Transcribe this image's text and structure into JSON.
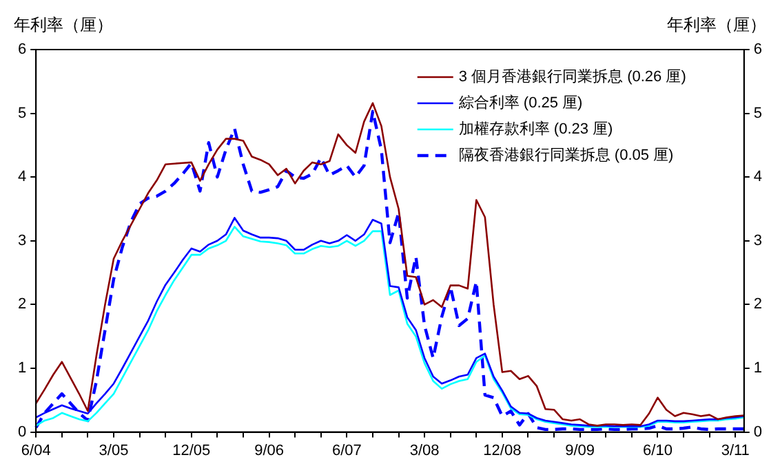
{
  "chart_data": {
    "type": "line",
    "ylabel": "年利率（厘）",
    "y2label": "年利率（厘）",
    "categories": [
      "6/04",
      null,
      null,
      null,
      null,
      null,
      null,
      null,
      null,
      "3/05",
      null,
      null,
      null,
      null,
      null,
      null,
      null,
      null,
      "12/05",
      null,
      null,
      null,
      null,
      null,
      null,
      null,
      null,
      "9/06",
      null,
      null,
      null,
      null,
      null,
      null,
      null,
      null,
      "6/07",
      null,
      null,
      null,
      null,
      null,
      null,
      null,
      null,
      "3/08",
      null,
      null,
      null,
      null,
      null,
      null,
      null,
      null,
      "12/08",
      null,
      null,
      null,
      null,
      null,
      null,
      null,
      null,
      "9/09",
      null,
      null,
      null,
      null,
      null,
      null,
      null,
      null,
      "6/10",
      null,
      null,
      null,
      null,
      null,
      null,
      null,
      null,
      "3/11",
      null
    ],
    "series": [
      {
        "name": "3 個月香港銀行同業拆息 (0.26 厘)",
        "color": "#8b0000",
        "line_style": "solid",
        "values": [
          0.45,
          0.67,
          0.9,
          1.1,
          0.85,
          0.6,
          0.33,
          1.2,
          2.0,
          2.72,
          3.0,
          3.25,
          3.5,
          3.75,
          3.95,
          4.2,
          4.21,
          4.22,
          4.23,
          3.94,
          4.2,
          4.43,
          4.6,
          4.6,
          4.57,
          4.32,
          4.27,
          4.2,
          4.03,
          4.13,
          3.9,
          4.1,
          4.23,
          4.2,
          4.25,
          4.67,
          4.5,
          4.38,
          4.87,
          5.16,
          4.8,
          4.0,
          3.5,
          2.45,
          2.43,
          2.0,
          2.07,
          1.96,
          2.3,
          2.3,
          2.25,
          3.64,
          3.37,
          2.0,
          0.94,
          0.96,
          0.83,
          0.88,
          0.72,
          0.36,
          0.35,
          0.2,
          0.18,
          0.2,
          0.12,
          0.1,
          0.12,
          0.12,
          0.11,
          0.12,
          0.11,
          0.29,
          0.54,
          0.35,
          0.25,
          0.3,
          0.28,
          0.25,
          0.27,
          0.2,
          0.23,
          0.25,
          0.26
        ]
      },
      {
        "name": "綜合利率 (0.25 厘)",
        "color": "#0000ff",
        "line_style": "solid",
        "values": [
          0.23,
          0.3,
          0.36,
          0.42,
          0.37,
          0.33,
          0.29,
          0.45,
          0.6,
          0.76,
          1.0,
          1.25,
          1.5,
          1.75,
          2.05,
          2.31,
          2.5,
          2.7,
          2.88,
          2.83,
          2.94,
          3.0,
          3.1,
          3.36,
          3.16,
          3.1,
          3.05,
          3.05,
          3.04,
          3.0,
          2.86,
          2.86,
          2.94,
          3.0,
          2.96,
          3.0,
          3.09,
          3.0,
          3.1,
          3.33,
          3.27,
          2.29,
          2.27,
          1.8,
          1.6,
          1.16,
          0.87,
          0.76,
          0.81,
          0.87,
          0.9,
          1.16,
          1.23,
          0.87,
          0.65,
          0.4,
          0.3,
          0.29,
          0.22,
          0.18,
          0.16,
          0.14,
          0.12,
          0.11,
          0.1,
          0.1,
          0.1,
          0.09,
          0.09,
          0.09,
          0.09,
          0.12,
          0.18,
          0.18,
          0.17,
          0.17,
          0.18,
          0.19,
          0.2,
          0.2,
          0.22,
          0.23,
          0.25
        ]
      },
      {
        "name": "加權存款利率 (0.23 厘)",
        "color": "#00ffff",
        "line_style": "solid",
        "values": [
          0.1,
          0.18,
          0.22,
          0.3,
          0.25,
          0.2,
          0.17,
          0.3,
          0.45,
          0.6,
          0.85,
          1.1,
          1.35,
          1.6,
          1.9,
          2.15,
          2.38,
          2.58,
          2.78,
          2.78,
          2.88,
          2.93,
          3.0,
          3.22,
          3.07,
          3.03,
          2.99,
          2.98,
          2.96,
          2.93,
          2.8,
          2.8,
          2.87,
          2.92,
          2.9,
          2.92,
          3.0,
          2.92,
          3.0,
          3.15,
          3.15,
          2.15,
          2.22,
          1.7,
          1.5,
          1.08,
          0.8,
          0.68,
          0.75,
          0.8,
          0.83,
          1.1,
          1.2,
          0.83,
          0.62,
          0.37,
          0.28,
          0.27,
          0.2,
          0.16,
          0.14,
          0.12,
          0.1,
          0.09,
          0.08,
          0.08,
          0.08,
          0.08,
          0.08,
          0.08,
          0.08,
          0.1,
          0.16,
          0.16,
          0.15,
          0.15,
          0.16,
          0.17,
          0.18,
          0.18,
          0.2,
          0.21,
          0.23
        ]
      },
      {
        "name": "隔夜香港銀行同業拆息 (0.05 厘)",
        "color": "#0000ff",
        "line_style": "dashed",
        "values": [
          0.07,
          0.3,
          0.45,
          0.6,
          0.45,
          0.3,
          0.18,
          0.8,
          1.6,
          2.4,
          2.9,
          3.3,
          3.58,
          3.67,
          3.7,
          3.78,
          3.9,
          4.05,
          4.22,
          3.78,
          4.54,
          4.0,
          4.43,
          4.76,
          4.2,
          3.78,
          3.76,
          3.8,
          3.85,
          4.1,
          4.0,
          3.98,
          4.05,
          4.3,
          4.03,
          4.1,
          4.18,
          4.0,
          4.18,
          5.03,
          4.43,
          2.97,
          3.44,
          2.1,
          2.75,
          1.67,
          1.16,
          1.81,
          2.28,
          1.67,
          1.78,
          2.36,
          0.58,
          0.54,
          0.25,
          0.33,
          0.11,
          0.29,
          0.07,
          0.04,
          0.04,
          0.05,
          0.05,
          0.04,
          0.04,
          0.04,
          0.05,
          0.04,
          0.04,
          0.05,
          0.05,
          0.06,
          0.1,
          0.05,
          0.05,
          0.06,
          0.08,
          0.05,
          0.04,
          0.05,
          0.05,
          0.05,
          0.05
        ]
      }
    ],
    "ylim": [
      0,
      6
    ],
    "yticks": [
      0,
      1,
      2,
      3,
      4,
      5,
      6
    ],
    "y2lim": [
      0,
      6
    ],
    "y2ticks": [
      0,
      1,
      2,
      3,
      4,
      5,
      6
    ],
    "grid": false,
    "legend": "top right",
    "marker": "none"
  }
}
